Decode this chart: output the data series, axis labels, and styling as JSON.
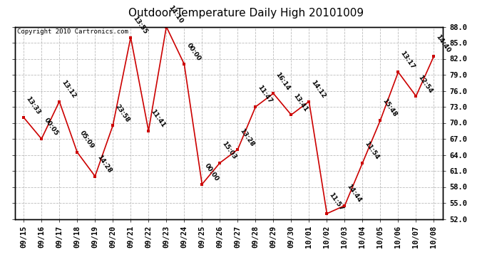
{
  "title": "Outdoor Temperature Daily High 20101009",
  "copyright": "Copyright 2010 Cartronics.com",
  "dates": [
    "09/15",
    "09/16",
    "09/17",
    "09/18",
    "09/19",
    "09/20",
    "09/21",
    "09/22",
    "09/23",
    "09/24",
    "09/25",
    "09/26",
    "09/27",
    "09/28",
    "09/29",
    "09/30",
    "10/01",
    "10/02",
    "10/03",
    "10/04",
    "10/05",
    "10/06",
    "10/07",
    "10/08"
  ],
  "temps": [
    71.0,
    67.0,
    74.0,
    64.5,
    60.0,
    69.5,
    86.0,
    68.5,
    88.0,
    81.0,
    58.5,
    62.5,
    65.0,
    73.0,
    75.5,
    71.5,
    74.0,
    53.0,
    54.5,
    62.5,
    70.5,
    79.5,
    75.0,
    82.5
  ],
  "labels": [
    "13:33",
    "00:05",
    "13:12",
    "05:09",
    "14:28",
    "23:58",
    "13:55",
    "11:41",
    "14:10",
    "00:00",
    "00:00",
    "15:03",
    "13:28",
    "11:47",
    "16:14",
    "13:41",
    "14:12",
    "11:57",
    "14:44",
    "11:54",
    "15:48",
    "13:17",
    "12:54",
    "14:40"
  ],
  "ylim": [
    52.0,
    88.0
  ],
  "yticks": [
    52.0,
    55.0,
    58.0,
    61.0,
    64.0,
    67.0,
    70.0,
    73.0,
    76.0,
    79.0,
    82.0,
    85.0,
    88.0
  ],
  "bg_color": "#ffffff",
  "line_color": "#cc0000",
  "marker_color": "#cc0000",
  "grid_color": "#bbbbbb",
  "title_fontsize": 11,
  "label_fontsize": 6.5,
  "tick_fontsize": 7.5,
  "copyright_fontsize": 6.5
}
